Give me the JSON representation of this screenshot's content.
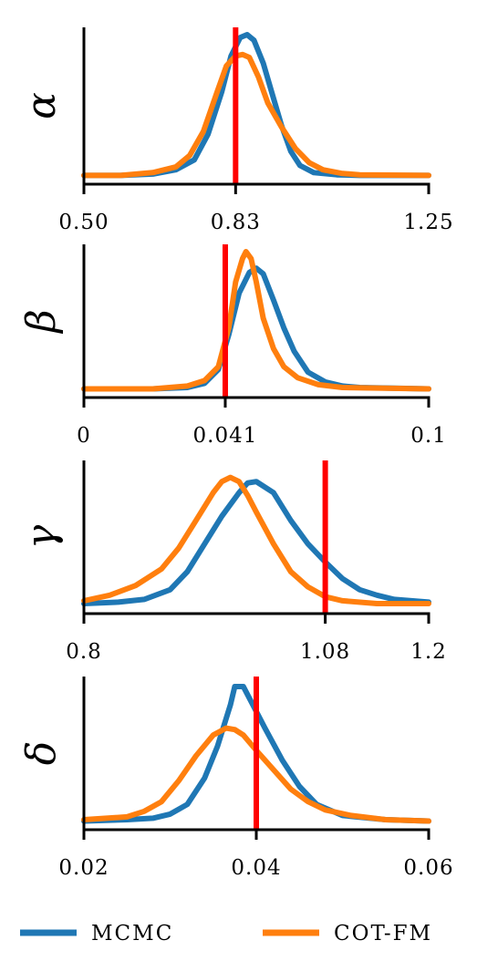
{
  "colors": {
    "mcmc": "#1f77b4",
    "cot_fm": "#ff7f0e",
    "truth": "#ff0000",
    "axis": "#000000"
  },
  "legend": [
    {
      "name": "MCMC",
      "color": "#1f77b4"
    },
    {
      "name": "COT-FM",
      "color": "#ff7f0e"
    }
  ],
  "chart_data": [
    {
      "type": "line",
      "ylabel": "α",
      "xlim": [
        0.5,
        1.25
      ],
      "ticks": [
        0.5,
        0.83,
        1.25
      ],
      "tick_labels": [
        "0.50",
        "0.83",
        "1.25"
      ],
      "truth": 0.83,
      "series": [
        {
          "name": "MCMC",
          "x": [
            0.5,
            0.58,
            0.65,
            0.7,
            0.74,
            0.77,
            0.8,
            0.82,
            0.84,
            0.855,
            0.87,
            0.89,
            0.91,
            0.93,
            0.95,
            0.97,
            1.0,
            1.05,
            1.1,
            1.25
          ],
          "y": [
            0.01,
            0.01,
            0.02,
            0.05,
            0.12,
            0.3,
            0.6,
            0.85,
            0.98,
            1.0,
            0.96,
            0.8,
            0.58,
            0.36,
            0.18,
            0.08,
            0.03,
            0.015,
            0.01,
            0.01
          ]
        },
        {
          "name": "COT-FM",
          "x": [
            0.5,
            0.58,
            0.65,
            0.7,
            0.73,
            0.76,
            0.79,
            0.81,
            0.83,
            0.845,
            0.86,
            0.88,
            0.9,
            0.93,
            0.96,
            0.99,
            1.02,
            1.06,
            1.1,
            1.25
          ],
          "y": [
            0.01,
            0.01,
            0.03,
            0.07,
            0.15,
            0.32,
            0.6,
            0.78,
            0.85,
            0.86,
            0.84,
            0.7,
            0.52,
            0.35,
            0.2,
            0.1,
            0.05,
            0.025,
            0.015,
            0.01
          ]
        }
      ]
    },
    {
      "type": "line",
      "ylabel": "β",
      "xlim": [
        0,
        0.1
      ],
      "ticks": [
        0,
        0.041,
        0.1
      ],
      "tick_labels": [
        "0",
        "0.041",
        "0.1"
      ],
      "truth": 0.041,
      "series": [
        {
          "name": "MCMC",
          "x": [
            0,
            0.02,
            0.03,
            0.035,
            0.039,
            0.042,
            0.045,
            0.048,
            0.05,
            0.052,
            0.055,
            0.058,
            0.061,
            0.065,
            0.07,
            0.075,
            0.08,
            0.1
          ],
          "y": [
            0.01,
            0.01,
            0.02,
            0.05,
            0.15,
            0.4,
            0.7,
            0.85,
            0.88,
            0.84,
            0.65,
            0.45,
            0.28,
            0.13,
            0.06,
            0.03,
            0.02,
            0.01
          ]
        },
        {
          "name": "COT-FM",
          "x": [
            0,
            0.02,
            0.03,
            0.035,
            0.039,
            0.042,
            0.044,
            0.046,
            0.047,
            0.0485,
            0.05,
            0.052,
            0.055,
            0.058,
            0.062,
            0.068,
            0.075,
            0.1
          ],
          "y": [
            0.01,
            0.01,
            0.03,
            0.07,
            0.17,
            0.45,
            0.78,
            0.95,
            1.0,
            0.95,
            0.78,
            0.52,
            0.3,
            0.17,
            0.09,
            0.04,
            0.02,
            0.01
          ]
        }
      ]
    },
    {
      "type": "line",
      "ylabel": "γ",
      "xlim": [
        0.8,
        1.2
      ],
      "ticks": [
        0.8,
        1.08,
        1.2
      ],
      "tick_labels": [
        "0.8",
        "1.08",
        "1.2"
      ],
      "truth": 1.08,
      "series": [
        {
          "name": "MCMC",
          "x": [
            0.8,
            0.84,
            0.87,
            0.9,
            0.92,
            0.94,
            0.96,
            0.98,
            0.99,
            1.0,
            1.02,
            1.04,
            1.06,
            1.08,
            1.1,
            1.12,
            1.14,
            1.16,
            1.2
          ],
          "y": [
            0.02,
            0.03,
            0.05,
            0.12,
            0.25,
            0.45,
            0.65,
            0.82,
            0.89,
            0.9,
            0.82,
            0.62,
            0.45,
            0.32,
            0.2,
            0.12,
            0.08,
            0.05,
            0.03
          ]
        },
        {
          "name": "COT-FM",
          "x": [
            0.8,
            0.83,
            0.86,
            0.89,
            0.91,
            0.93,
            0.95,
            0.96,
            0.97,
            0.98,
            0.99,
            1.0,
            1.02,
            1.04,
            1.06,
            1.08,
            1.1,
            1.14,
            1.2
          ],
          "y": [
            0.04,
            0.08,
            0.15,
            0.27,
            0.42,
            0.62,
            0.82,
            0.9,
            0.93,
            0.9,
            0.8,
            0.68,
            0.45,
            0.25,
            0.14,
            0.07,
            0.04,
            0.02,
            0.02
          ]
        }
      ]
    },
    {
      "type": "line",
      "ylabel": "δ",
      "xlim": [
        0.02,
        0.06
      ],
      "ticks": [
        0.02,
        0.04,
        0.06
      ],
      "tick_labels": [
        "0.02",
        "0.04",
        "0.06"
      ],
      "truth": 0.04,
      "series": [
        {
          "name": "MCMC",
          "x": [
            0.02,
            0.025,
            0.028,
            0.03,
            0.032,
            0.034,
            0.0355,
            0.037,
            0.0375,
            0.0385,
            0.0395,
            0.041,
            0.043,
            0.045,
            0.047,
            0.05,
            0.055,
            0.06
          ],
          "y": [
            0.01,
            0.02,
            0.03,
            0.06,
            0.13,
            0.32,
            0.55,
            0.85,
            0.98,
            0.98,
            0.86,
            0.68,
            0.45,
            0.26,
            0.13,
            0.05,
            0.02,
            0.01
          ]
        },
        {
          "name": "COT-FM",
          "x": [
            0.02,
            0.025,
            0.027,
            0.029,
            0.031,
            0.033,
            0.035,
            0.0365,
            0.0375,
            0.0385,
            0.04,
            0.042,
            0.044,
            0.046,
            0.048,
            0.051,
            0.055,
            0.06
          ],
          "y": [
            0.02,
            0.04,
            0.08,
            0.15,
            0.3,
            0.48,
            0.63,
            0.68,
            0.67,
            0.63,
            0.52,
            0.38,
            0.24,
            0.15,
            0.09,
            0.05,
            0.02,
            0.01
          ]
        }
      ]
    }
  ]
}
